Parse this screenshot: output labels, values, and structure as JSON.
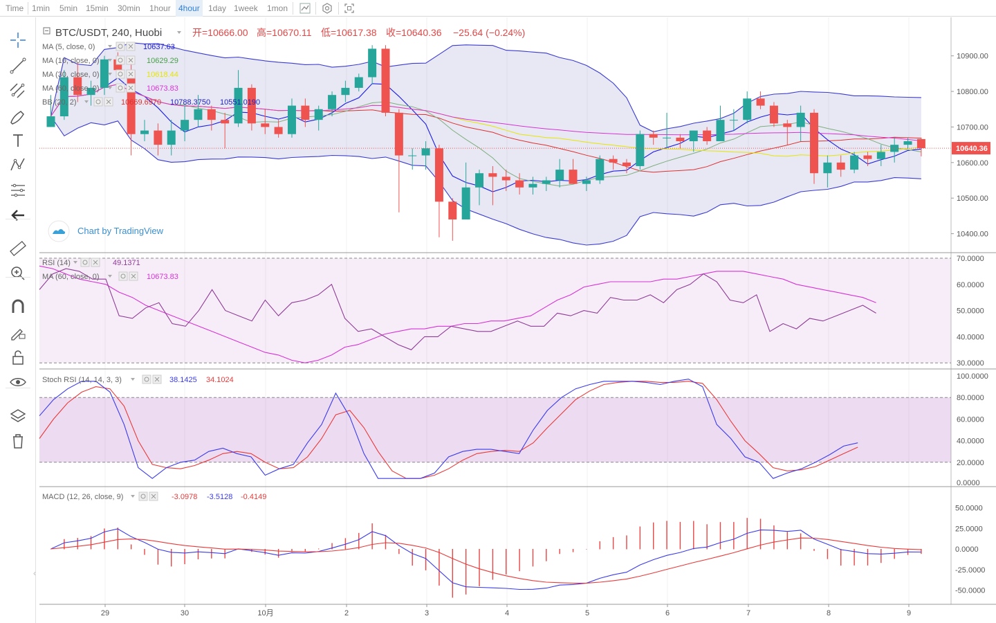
{
  "toolbar": {
    "timeframes": [
      "Time",
      "1min",
      "5min",
      "15min",
      "30min",
      "1hour",
      "4hour",
      "1day",
      "1week",
      "1mon"
    ],
    "active": "4hour",
    "icons": [
      "chart-type-icon",
      "indicators-icon",
      "fullscreen-icon"
    ]
  },
  "left_tools": [
    "crosshair-icon",
    "trend-line-icon",
    "fib-icon",
    "brush-icon",
    "text-icon",
    "pattern-icon",
    "forecast-icon",
    "back-arrow-icon",
    "ruler-icon",
    "zoom-in-icon",
    "magnet-icon",
    "lock-drawing-icon",
    "unlock-icon",
    "eye-icon",
    "layers-icon",
    "trash-icon"
  ],
  "header": {
    "symbol": "BTC/USDT, 240, Huobi",
    "open_label": "开=",
    "open": "10666.00",
    "high_label": "高=",
    "high": "10670.11",
    "low_label": "低=",
    "low": "10617.38",
    "close_label": "收=",
    "close": "10640.36",
    "change": "−25.64 (−0.24%)"
  },
  "indicators_main": [
    {
      "name": "MA (5, close, 0)",
      "value": "10637.63",
      "color": "#1a1ae6"
    },
    {
      "name": "MA (10, close, 0)",
      "value": "10629.29",
      "color": "#46a046"
    },
    {
      "name": "MA (30, close, 0)",
      "value": "10618.44",
      "color": "#e6e600"
    },
    {
      "name": "MA (60, close, 0)",
      "value": "10673.83",
      "color": "#d633d6"
    },
    {
      "name": "BB (20, 2)",
      "values": [
        "10669.6970",
        "10788.3750",
        "10551.0190"
      ],
      "colors": [
        "#e03030",
        "#2020c0",
        "#2020c0"
      ]
    }
  ],
  "watermark": "Chart by TradingView",
  "price_axis": {
    "ticks": [
      10900,
      10800,
      10700,
      10600,
      10500,
      10400
    ],
    "current": "10640.36"
  },
  "time_axis": [
    "29",
    "30",
    "10月",
    "2",
    "3",
    "4",
    "5",
    "6",
    "7",
    "8",
    "9"
  ],
  "rsi": {
    "label": "RSI (14)",
    "value": "49.1371",
    "ma_label": "MA (60, close, 0)",
    "ma_value": "10673.83",
    "ticks": [
      "70.0000",
      "60.0000",
      "50.0000",
      "40.0000",
      "30.0000"
    ]
  },
  "stoch": {
    "label": "Stoch RSI (14, 14, 3, 3)",
    "k": "38.1425",
    "d": "34.1024",
    "ticks": [
      "100.0000",
      "80.0000",
      "60.0000",
      "40.0000",
      "20.0000",
      "0.0000"
    ]
  },
  "macd": {
    "label": "MACD (12, 26, close, 9)",
    "v1": "-3.0978",
    "v2": "-3.5128",
    "v3": "-0.4149",
    "ticks": [
      "50.0000",
      "25.0000",
      "0.0000",
      "-25.0000",
      "-50.0000"
    ]
  },
  "chart_data": {
    "type": "candlestick",
    "interval": "4h",
    "candles": [
      [
        10700,
        10790,
        10700,
        10730
      ],
      [
        10730,
        10860,
        10720,
        10840
      ],
      [
        10840,
        10880,
        10770,
        10790
      ],
      [
        10790,
        10830,
        10760,
        10810
      ],
      [
        10810,
        10900,
        10790,
        10890
      ],
      [
        10890,
        10910,
        10840,
        10860
      ],
      [
        10860,
        10880,
        10620,
        10680
      ],
      [
        10680,
        10720,
        10660,
        10690
      ],
      [
        10690,
        10710,
        10620,
        10650
      ],
      [
        10650,
        10720,
        10620,
        10690
      ],
      [
        10690,
        10760,
        10660,
        10720
      ],
      [
        10720,
        10790,
        10700,
        10750
      ],
      [
        10750,
        10760,
        10690,
        10720
      ],
      [
        10720,
        10740,
        10640,
        10710
      ],
      [
        10710,
        10860,
        10700,
        10810
      ],
      [
        10810,
        10820,
        10690,
        10710
      ],
      [
        10710,
        10750,
        10680,
        10700
      ],
      [
        10700,
        10720,
        10670,
        10680
      ],
      [
        10680,
        10780,
        10670,
        10760
      ],
      [
        10760,
        10780,
        10700,
        10720
      ],
      [
        10720,
        10760,
        10690,
        10750
      ],
      [
        10750,
        10800,
        10730,
        10790
      ],
      [
        10790,
        10830,
        10770,
        10810
      ],
      [
        10810,
        10850,
        10800,
        10840
      ],
      [
        10840,
        10930,
        10820,
        10920
      ],
      [
        10920,
        10930,
        10730,
        10740
      ],
      [
        10740,
        10750,
        10460,
        10620
      ],
      [
        10620,
        10640,
        10580,
        10620
      ],
      [
        10620,
        10660,
        10580,
        10640
      ],
      [
        10640,
        10650,
        10390,
        10490
      ],
      [
        10490,
        10500,
        10380,
        10440
      ],
      [
        10440,
        10600,
        10440,
        10530
      ],
      [
        10530,
        10580,
        10480,
        10570
      ],
      [
        10570,
        10590,
        10480,
        10560
      ],
      [
        10560,
        10580,
        10520,
        10550
      ],
      [
        10550,
        10570,
        10510,
        10530
      ],
      [
        10530,
        10560,
        10510,
        10540
      ],
      [
        10540,
        10560,
        10520,
        10550
      ],
      [
        10550,
        10610,
        10530,
        10580
      ],
      [
        10580,
        10610,
        10540,
        10540
      ],
      [
        10540,
        10560,
        10520,
        10550
      ],
      [
        10550,
        10620,
        10540,
        10610
      ],
      [
        10610,
        10620,
        10580,
        10600
      ],
      [
        10600,
        10610,
        10570,
        10590
      ],
      [
        10590,
        10690,
        10580,
        10680
      ],
      [
        10680,
        10690,
        10650,
        10670
      ],
      [
        10670,
        10740,
        10640,
        10670
      ],
      [
        10670,
        10680,
        10640,
        10660
      ],
      [
        10660,
        10690,
        10630,
        10690
      ],
      [
        10690,
        10700,
        10650,
        10660
      ],
      [
        10660,
        10760,
        10660,
        10720
      ],
      [
        10720,
        10750,
        10690,
        10720
      ],
      [
        10720,
        10800,
        10710,
        10780
      ],
      [
        10780,
        10800,
        10750,
        10760
      ],
      [
        10760,
        10770,
        10700,
        10710
      ],
      [
        10710,
        10720,
        10650,
        10700
      ],
      [
        10700,
        10760,
        10660,
        10740
      ],
      [
        10740,
        10750,
        10540,
        10570
      ],
      [
        10570,
        10620,
        10530,
        10600
      ],
      [
        10600,
        10620,
        10560,
        10580
      ],
      [
        10580,
        10630,
        10570,
        10620
      ],
      [
        10620,
        10630,
        10590,
        10610
      ],
      [
        10610,
        10650,
        10590,
        10630
      ],
      [
        10630,
        10670,
        10600,
        10650
      ],
      [
        10650,
        10670,
        10640,
        10660
      ],
      [
        10666,
        10670.11,
        10617.38,
        10640.36
      ]
    ],
    "rsi": [
      58,
      64,
      66,
      65,
      62,
      62,
      48,
      47,
      51,
      53,
      45,
      44,
      50,
      58,
      50,
      48,
      46,
      54,
      48,
      53,
      54,
      56,
      60,
      47,
      42,
      43,
      40,
      37,
      35,
      40,
      40,
      44,
      43,
      42,
      42,
      44,
      46,
      44,
      44,
      49,
      48,
      50,
      49,
      55,
      54,
      54,
      56,
      53,
      58,
      60,
      64,
      61,
      54,
      53,
      56,
      42,
      45,
      43,
      47,
      46,
      48,
      50,
      52,
      49
    ],
    "rsi_ma": [
      67,
      66,
      64,
      62,
      61,
      60,
      57,
      55,
      52,
      50,
      48,
      46,
      44,
      42,
      40,
      38,
      36,
      34,
      33,
      31,
      30,
      31,
      33,
      36,
      37,
      39,
      41,
      42,
      43,
      43,
      44,
      44,
      45,
      45,
      46,
      46,
      47,
      48,
      51,
      54,
      56,
      59,
      60,
      61,
      61,
      61,
      61,
      62,
      62,
      63,
      64,
      65,
      65,
      65,
      64,
      63,
      62,
      60,
      59,
      58,
      57,
      56,
      55,
      53
    ],
    "stoch_k": [
      63,
      78,
      88,
      95,
      95,
      85,
      55,
      15,
      5,
      15,
      20,
      22,
      30,
      33,
      28,
      25,
      8,
      14,
      18,
      38,
      55,
      84,
      62,
      28,
      5,
      5,
      5,
      5,
      10,
      25,
      30,
      32,
      32,
      30,
      28,
      50,
      68,
      80,
      88,
      92,
      95,
      95,
      95,
      94,
      92,
      95,
      97,
      90,
      55,
      42,
      25,
      20,
      5,
      10,
      14,
      20,
      27,
      35,
      38
    ],
    "stoch_d": [
      42,
      60,
      75,
      85,
      90,
      88,
      72,
      40,
      18,
      15,
      14,
      17,
      22,
      28,
      30,
      28,
      20,
      14,
      15,
      25,
      42,
      64,
      68,
      52,
      30,
      12,
      5,
      5,
      8,
      14,
      22,
      28,
      30,
      31,
      30,
      38,
      52,
      65,
      78,
      86,
      92,
      94,
      95,
      95,
      94,
      94,
      95,
      93,
      78,
      58,
      40,
      28,
      15,
      12,
      13,
      16,
      22,
      28,
      34
    ]
  }
}
